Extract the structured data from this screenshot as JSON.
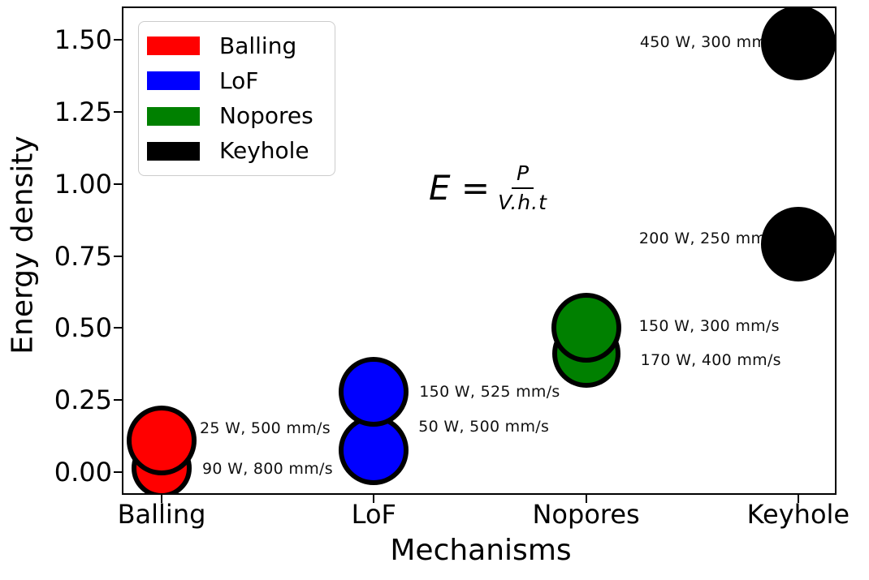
{
  "figure": {
    "ylabel": "Energy density",
    "xlabel": "Mechanisms",
    "formula": {
      "lhs": "E =",
      "numerator": "P",
      "denominator": "V.h.t"
    }
  },
  "chart_data": {
    "type": "scatter",
    "title": "",
    "xlabel": "Mechanisms",
    "ylabel": "Energy density",
    "x_categories": [
      "Balling",
      "LoF",
      "Nopores",
      "Keyhole"
    ],
    "y_ticks": [
      "0.00",
      "0.25",
      "0.50",
      "0.75",
      "1.00",
      "1.25",
      "1.50"
    ],
    "y_tick_values": [
      0,
      0.25,
      0.5,
      0.75,
      1.0,
      1.25,
      1.5
    ],
    "ylim": [
      -0.08,
      1.62
    ],
    "grid": false,
    "legend_position": "upper left",
    "annotation_formula": "E = P / (V.h.t)",
    "legend": [
      {
        "label": "Balling",
        "color": "#ff0000"
      },
      {
        "label": "LoF",
        "color": "#0000ff"
      },
      {
        "label": "Nopores",
        "color": "#008000"
      },
      {
        "label": "Keyhole",
        "color": "#000000"
      }
    ],
    "points": [
      {
        "category": "Balling",
        "x_index": 0,
        "y": 0.11,
        "color": "#ff0000",
        "label": "25 W, 500 mm/s",
        "r": 43,
        "label_offset": [
          47,
          -15
        ]
      },
      {
        "category": "Balling",
        "x_index": 0,
        "y": 0.015,
        "color": "#ff0000",
        "label": "90 W, 800 mm/s",
        "r": 37,
        "label_offset": [
          50,
          1
        ]
      },
      {
        "category": "LoF",
        "x_index": 1,
        "y": 0.28,
        "color": "#0000ff",
        "label": "150 W, 525 mm/s",
        "r": 43,
        "label_offset": [
          56,
          0
        ]
      },
      {
        "category": "LoF",
        "x_index": 1,
        "y": 0.075,
        "color": "#0000ff",
        "label": "50 W, 500 mm/s",
        "r": 43,
        "label_offset": [
          55,
          -29
        ]
      },
      {
        "category": "Nopores",
        "x_index": 2,
        "y": 0.5,
        "color": "#008000",
        "label": "150 W, 300 mm/s",
        "r": 43,
        "label_offset": [
          65,
          -2
        ]
      },
      {
        "category": "Nopores",
        "x_index": 2,
        "y": 0.41,
        "color": "#008000",
        "label": "170 W, 400 mm/s",
        "r": 42,
        "label_offset": [
          67,
          8
        ]
      },
      {
        "category": "Keyhole",
        "x_index": 3,
        "y": 1.49,
        "color": "#000000",
        "label": "450 W, 300 mm/s",
        "r": 46,
        "label_offset": [
          -195,
          -1
        ]
      },
      {
        "category": "Keyhole",
        "x_index": 3,
        "y": 0.79,
        "color": "#000000",
        "label": "200 W, 250 mm/s",
        "r": 46,
        "label_offset": [
          -196,
          -7
        ]
      }
    ],
    "marker_edge_color": "#000000"
  },
  "colors": {
    "background": "#ffffff",
    "spine": "#000000",
    "legend_border": "#cccccc"
  }
}
